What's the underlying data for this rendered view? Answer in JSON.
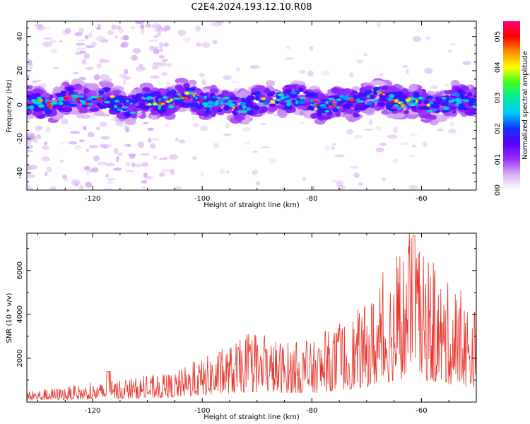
{
  "title": "C2E4.2024.193.12.10.R08",
  "colors": {
    "signal": "#e8332a",
    "axis": "#000000"
  },
  "chart_data": [
    {
      "type": "heatmap",
      "name": "spectrogram",
      "xlabel": "Height of straight line (km)",
      "ylabel": "Frequency (Hz)",
      "xlim": [
        -132,
        -50
      ],
      "ylim": [
        -50,
        49
      ],
      "x_ticks": [
        -120,
        -100,
        -80,
        -60
      ],
      "y_ticks": [
        -40,
        -20,
        0,
        20,
        40
      ],
      "x_tick_labels": [
        "-120",
        "-100",
        "-80",
        "-60"
      ],
      "y_tick_labels": [
        "-40",
        "-20",
        "0",
        "20",
        "40"
      ],
      "band_center_hz": 2,
      "band_halfwidth_hz": 9,
      "colorbar": {
        "label": "Normalized spectral amplitude",
        "range": [
          0.0,
          0.55
        ],
        "ticks": [
          0.0,
          0.1,
          0.2,
          0.3,
          0.4,
          0.5
        ],
        "tick_labels": [
          "0.0",
          "0.1",
          "0.2",
          "0.3",
          "0.4",
          "0.5"
        ],
        "stops": [
          "#ffffff",
          "#d9b3f0",
          "#9b30ff",
          "#5a00ff",
          "#1030ff",
          "#00c8ff",
          "#00e8a0",
          "#40ff20",
          "#ffff00",
          "#ff9000",
          "#ff0000",
          "#ff0077"
        ]
      }
    },
    {
      "type": "line",
      "name": "snr",
      "xlabel": "Height of straight line (km)",
      "ylabel": "SNR (10 * v/v)",
      "xlim": [
        -132,
        -50
      ],
      "ylim": [
        0,
        7700
      ],
      "x_ticks": [
        -120,
        -100,
        -80,
        -60
      ],
      "y_ticks": [
        2000,
        4000,
        6000
      ],
      "x_tick_labels": [
        "-120",
        "-100",
        "-80",
        "-60"
      ],
      "y_tick_labels": [
        "2000",
        "4000",
        "6000"
      ],
      "envelope": [
        {
          "x": -132,
          "y": 500
        },
        {
          "x": -118,
          "y": 900
        },
        {
          "x": -106,
          "y": 1300
        },
        {
          "x": -100,
          "y": 2000
        },
        {
          "x": -92,
          "y": 3000
        },
        {
          "x": -80,
          "y": 2700
        },
        {
          "x": -70,
          "y": 4500
        },
        {
          "x": -62,
          "y": 7600
        },
        {
          "x": -58,
          "y": 6100
        },
        {
          "x": -50,
          "y": 4300
        }
      ]
    }
  ]
}
